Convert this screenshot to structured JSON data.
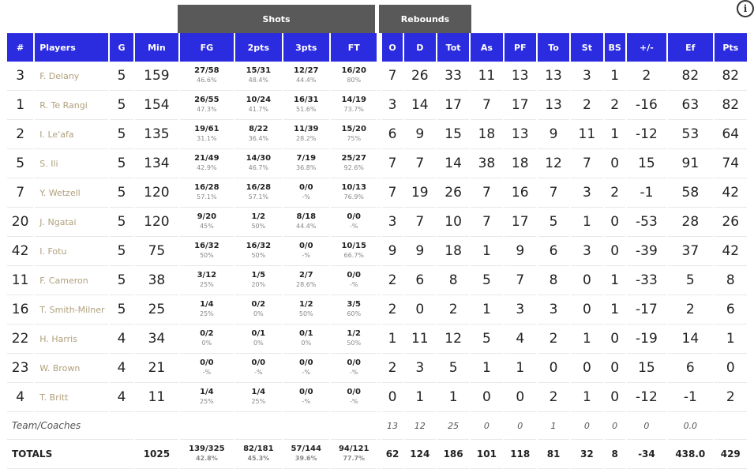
{
  "groups": {
    "shots": "Shots",
    "rebounds": "Rebounds"
  },
  "info_icon": "info-icon",
  "headers": [
    "#",
    "Players",
    "G",
    "Min",
    "FG",
    "2pts",
    "3pts",
    "FT",
    "O",
    "D",
    "Tot",
    "As",
    "PF",
    "To",
    "St",
    "BS",
    "+/-",
    "Ef",
    "Pts"
  ],
  "rows": [
    {
      "num": "3",
      "name": "F. Delany",
      "g": "5",
      "min": "159",
      "fg": "27/58",
      "fg_p": "46.6%",
      "p2": "15/31",
      "p2_p": "48.4%",
      "p3": "12/27",
      "p3_p": "44.4%",
      "ft": "16/20",
      "ft_p": "80%",
      "o": "7",
      "d": "26",
      "tot": "33",
      "as": "11",
      "pf": "13",
      "to": "13",
      "st": "3",
      "bs": "1",
      "pm": "2",
      "ef": "82",
      "pts": "82"
    },
    {
      "num": "1",
      "name": "R. Te Rangi",
      "g": "5",
      "min": "154",
      "fg": "26/55",
      "fg_p": "47.3%",
      "p2": "10/24",
      "p2_p": "41.7%",
      "p3": "16/31",
      "p3_p": "51.6%",
      "ft": "14/19",
      "ft_p": "73.7%",
      "o": "3",
      "d": "14",
      "tot": "17",
      "as": "7",
      "pf": "17",
      "to": "13",
      "st": "2",
      "bs": "2",
      "pm": "-16",
      "ef": "63",
      "pts": "82"
    },
    {
      "num": "2",
      "name": "I. Le'afa",
      "g": "5",
      "min": "135",
      "fg": "19/61",
      "fg_p": "31.1%",
      "p2": "8/22",
      "p2_p": "36.4%",
      "p3": "11/39",
      "p3_p": "28.2%",
      "ft": "15/20",
      "ft_p": "75%",
      "o": "6",
      "d": "9",
      "tot": "15",
      "as": "18",
      "pf": "13",
      "to": "9",
      "st": "11",
      "bs": "1",
      "pm": "-12",
      "ef": "53",
      "pts": "64"
    },
    {
      "num": "5",
      "name": "S. Ili",
      "g": "5",
      "min": "134",
      "fg": "21/49",
      "fg_p": "42.9%",
      "p2": "14/30",
      "p2_p": "46.7%",
      "p3": "7/19",
      "p3_p": "36.8%",
      "ft": "25/27",
      "ft_p": "92.6%",
      "o": "7",
      "d": "7",
      "tot": "14",
      "as": "38",
      "pf": "18",
      "to": "12",
      "st": "7",
      "bs": "0",
      "pm": "15",
      "ef": "91",
      "pts": "74"
    },
    {
      "num": "7",
      "name": "Y. Wetzell",
      "g": "5",
      "min": "120",
      "fg": "16/28",
      "fg_p": "57.1%",
      "p2": "16/28",
      "p2_p": "57.1%",
      "p3": "0/0",
      "p3_p": "-%",
      "ft": "10/13",
      "ft_p": "76.9%",
      "o": "7",
      "d": "19",
      "tot": "26",
      "as": "7",
      "pf": "16",
      "to": "7",
      "st": "3",
      "bs": "2",
      "pm": "-1",
      "ef": "58",
      "pts": "42"
    },
    {
      "num": "20",
      "name": "J. Ngatai",
      "g": "5",
      "min": "120",
      "fg": "9/20",
      "fg_p": "45%",
      "p2": "1/2",
      "p2_p": "50%",
      "p3": "8/18",
      "p3_p": "44.4%",
      "ft": "0/0",
      "ft_p": "-%",
      "o": "3",
      "d": "7",
      "tot": "10",
      "as": "7",
      "pf": "17",
      "to": "5",
      "st": "1",
      "bs": "0",
      "pm": "-53",
      "ef": "28",
      "pts": "26"
    },
    {
      "num": "42",
      "name": "I. Fotu",
      "g": "5",
      "min": "75",
      "fg": "16/32",
      "fg_p": "50%",
      "p2": "16/32",
      "p2_p": "50%",
      "p3": "0/0",
      "p3_p": "-%",
      "ft": "10/15",
      "ft_p": "66.7%",
      "o": "9",
      "d": "9",
      "tot": "18",
      "as": "1",
      "pf": "9",
      "to": "6",
      "st": "3",
      "bs": "0",
      "pm": "-39",
      "ef": "37",
      "pts": "42"
    },
    {
      "num": "11",
      "name": "F. Cameron",
      "g": "5",
      "min": "38",
      "fg": "3/12",
      "fg_p": "25%",
      "p2": "1/5",
      "p2_p": "20%",
      "p3": "2/7",
      "p3_p": "28.6%",
      "ft": "0/0",
      "ft_p": "-%",
      "o": "2",
      "d": "6",
      "tot": "8",
      "as": "5",
      "pf": "7",
      "to": "8",
      "st": "0",
      "bs": "1",
      "pm": "-33",
      "ef": "5",
      "pts": "8"
    },
    {
      "num": "16",
      "name": "T. Smith-Milner",
      "g": "5",
      "min": "25",
      "fg": "1/4",
      "fg_p": "25%",
      "p2": "0/2",
      "p2_p": "0%",
      "p3": "1/2",
      "p3_p": "50%",
      "ft": "3/5",
      "ft_p": "60%",
      "o": "2",
      "d": "0",
      "tot": "2",
      "as": "1",
      "pf": "3",
      "to": "3",
      "st": "0",
      "bs": "1",
      "pm": "-17",
      "ef": "2",
      "pts": "6"
    },
    {
      "num": "22",
      "name": "H. Harris",
      "g": "4",
      "min": "34",
      "fg": "0/2",
      "fg_p": "0%",
      "p2": "0/1",
      "p2_p": "0%",
      "p3": "0/1",
      "p3_p": "0%",
      "ft": "1/2",
      "ft_p": "50%",
      "o": "1",
      "d": "11",
      "tot": "12",
      "as": "5",
      "pf": "4",
      "to": "2",
      "st": "1",
      "bs": "0",
      "pm": "-19",
      "ef": "14",
      "pts": "1"
    },
    {
      "num": "23",
      "name": "W. Brown",
      "g": "4",
      "min": "21",
      "fg": "0/0",
      "fg_p": "-%",
      "p2": "0/0",
      "p2_p": "-%",
      "p3": "0/0",
      "p3_p": "-%",
      "ft": "0/0",
      "ft_p": "-%",
      "o": "2",
      "d": "3",
      "tot": "5",
      "as": "1",
      "pf": "1",
      "to": "0",
      "st": "0",
      "bs": "0",
      "pm": "15",
      "ef": "6",
      "pts": "0"
    },
    {
      "num": "4",
      "name": "T. Britt",
      "g": "4",
      "min": "11",
      "fg": "1/4",
      "fg_p": "25%",
      "p2": "1/4",
      "p2_p": "25%",
      "p3": "0/0",
      "p3_p": "-%",
      "ft": "0/0",
      "ft_p": "-%",
      "o": "0",
      "d": "1",
      "tot": "1",
      "as": "0",
      "pf": "0",
      "to": "2",
      "st": "1",
      "bs": "0",
      "pm": "-12",
      "ef": "-1",
      "pts": "2"
    }
  ],
  "team": {
    "label": "Team/Coaches",
    "o": "13",
    "d": "12",
    "tot": "25",
    "as": "0",
    "pf": "0",
    "to": "1",
    "st": "0",
    "bs": "0",
    "pm": "0",
    "ef": "0.0",
    "pts": ""
  },
  "totals": {
    "label": "TOTALS",
    "min": "1025",
    "fg": "139/325",
    "fg_p": "42.8%",
    "p2": "82/181",
    "p2_p": "45.3%",
    "p3": "57/144",
    "p3_p": "39.6%",
    "ft": "94/121",
    "ft_p": "77.7%",
    "o": "62",
    "d": "124",
    "tot": "186",
    "as": "101",
    "pf": "118",
    "to": "81",
    "st": "32",
    "bs": "8",
    "pm": "-34",
    "ef": "438.0",
    "pts": "429"
  }
}
